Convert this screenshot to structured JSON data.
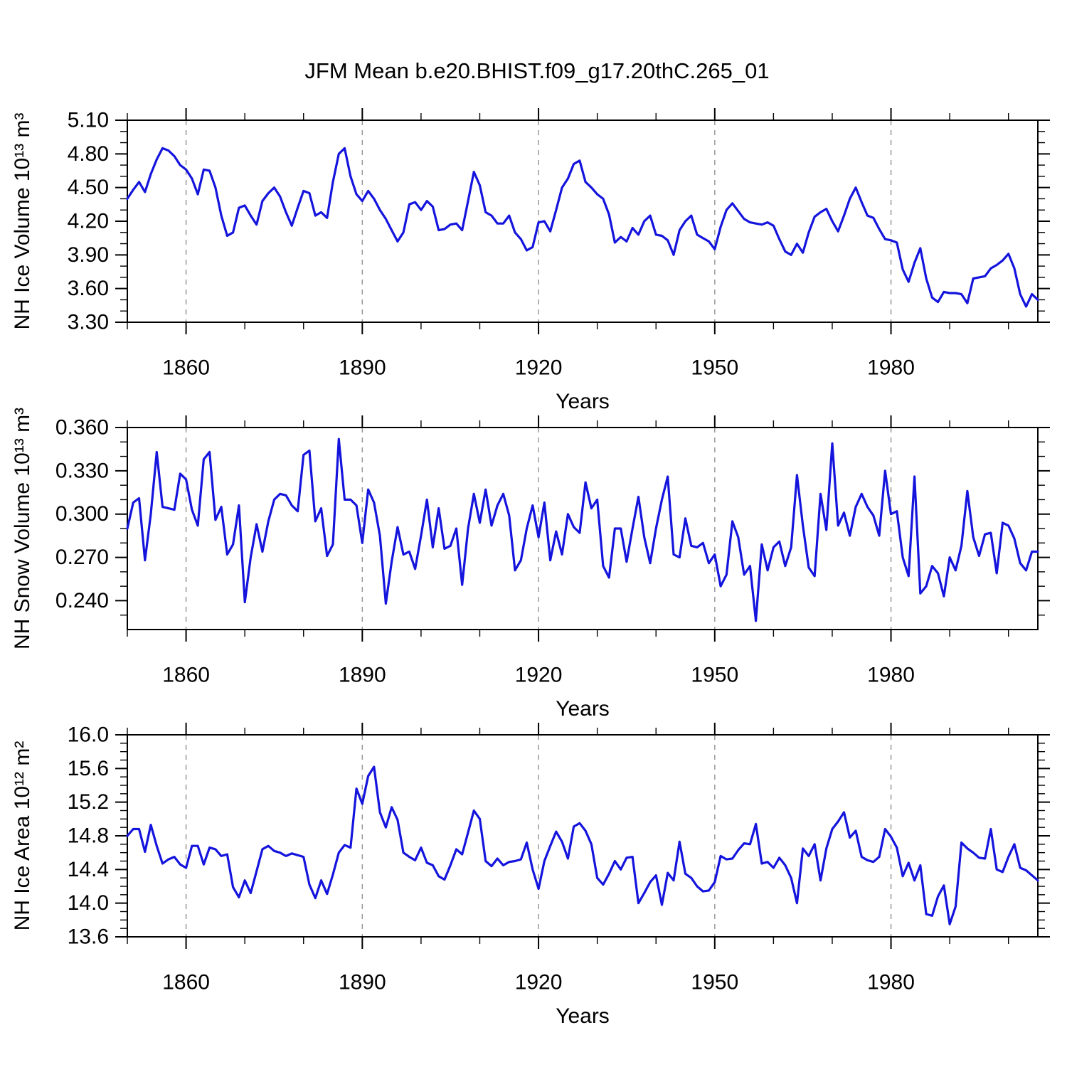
{
  "title": "JFM Mean b.e20.BHIST.f09_g17.20thC.265_01",
  "line_color": "#1414dd",
  "grid_color": "#999999",
  "axis_color": "#000000",
  "chart_data": [
    {
      "type": "line",
      "ylabel": "NH Ice Volume 10¹³ m³",
      "xlabel": "Years",
      "xlim": [
        1850,
        2005
      ],
      "x_start": 1850,
      "x_step": 1,
      "xticks_major": [
        1860,
        1890,
        1920,
        1950,
        1980
      ],
      "xtick_labels": [
        "1860",
        "1890",
        "1920",
        "1950",
        "1980"
      ],
      "xticks_minor": [
        1850,
        1870,
        1880,
        1900,
        1910,
        1930,
        1940,
        1960,
        1970,
        1990,
        2000
      ],
      "ylim": [
        3.3,
        5.1
      ],
      "yticks_major": [
        3.3,
        3.6,
        3.9,
        4.2,
        4.5,
        4.8,
        5.1
      ],
      "ytick_labels": [
        "3.30",
        "3.60",
        "3.90",
        "4.20",
        "4.50",
        "4.80",
        "5.10"
      ],
      "yticks_minor": [
        3.4,
        3.5,
        3.7,
        3.8,
        4.0,
        4.1,
        4.3,
        4.4,
        4.6,
        4.7,
        4.9,
        5.0
      ],
      "grid": true,
      "legend": "none",
      "values": [
        4.4,
        4.48,
        4.55,
        4.46,
        4.62,
        4.75,
        4.85,
        4.83,
        4.78,
        4.7,
        4.66,
        4.58,
        4.44,
        4.66,
        4.65,
        4.5,
        4.25,
        4.07,
        4.1,
        4.32,
        4.34,
        4.25,
        4.17,
        4.38,
        4.45,
        4.5,
        4.42,
        4.28,
        4.16,
        4.32,
        4.47,
        4.45,
        4.25,
        4.28,
        4.23,
        4.55,
        4.8,
        4.85,
        4.6,
        4.44,
        4.38,
        4.47,
        4.4,
        4.3,
        4.22,
        4.12,
        4.02,
        4.1,
        4.35,
        4.37,
        4.3,
        4.38,
        4.33,
        4.12,
        4.13,
        4.17,
        4.18,
        4.12,
        4.38,
        4.64,
        4.52,
        4.28,
        4.25,
        4.18,
        4.18,
        4.25,
        4.1,
        4.04,
        3.94,
        3.97,
        4.19,
        4.2,
        4.11,
        4.3,
        4.5,
        4.58,
        4.71,
        4.74,
        4.55,
        4.5,
        4.44,
        4.4,
        4.26,
        4.01,
        4.06,
        4.02,
        4.14,
        4.08,
        4.2,
        4.25,
        4.08,
        4.07,
        4.03,
        3.9,
        4.12,
        4.2,
        4.25,
        4.08,
        4.05,
        4.02,
        3.95,
        4.15,
        4.3,
        4.36,
        4.29,
        4.22,
        4.19,
        4.18,
        4.17,
        4.19,
        4.16,
        4.04,
        3.93,
        3.9,
        4.0,
        3.92,
        4.1,
        4.24,
        4.28,
        4.31,
        4.2,
        4.11,
        4.25,
        4.4,
        4.5,
        4.37,
        4.25,
        4.23,
        4.13,
        4.04,
        4.03,
        4.01,
        3.77,
        3.66,
        3.83,
        3.96,
        3.69,
        3.52,
        3.48,
        3.57,
        3.56,
        3.56,
        3.55,
        3.47,
        3.69,
        3.7,
        3.71,
        3.78,
        3.81,
        3.85,
        3.91,
        3.78,
        3.55,
        3.44,
        3.55,
        3.5
      ]
    },
    {
      "type": "line",
      "ylabel": "NH Snow Volume 10¹³ m³",
      "xlabel": "Years",
      "xlim": [
        1850,
        2005
      ],
      "x_start": 1850,
      "x_step": 1,
      "xticks_major": [
        1860,
        1890,
        1920,
        1950,
        1980
      ],
      "xtick_labels": [
        "1860",
        "1890",
        "1920",
        "1950",
        "1980"
      ],
      "xticks_minor": [
        1850,
        1870,
        1880,
        1900,
        1910,
        1930,
        1940,
        1960,
        1970,
        1990,
        2000
      ],
      "ylim": [
        0.22,
        0.36
      ],
      "yticks_major": [
        0.24,
        0.27,
        0.3,
        0.33,
        0.36
      ],
      "ytick_labels": [
        "0.240",
        "0.270",
        "0.300",
        "0.330",
        "0.360"
      ],
      "yticks_minor": [
        0.23,
        0.25,
        0.26,
        0.28,
        0.29,
        0.31,
        0.32,
        0.34,
        0.35
      ],
      "grid": true,
      "legend": "none",
      "values": [
        0.29,
        0.308,
        0.311,
        0.268,
        0.3,
        0.343,
        0.305,
        0.304,
        0.303,
        0.328,
        0.324,
        0.303,
        0.292,
        0.338,
        0.343,
        0.296,
        0.305,
        0.272,
        0.279,
        0.306,
        0.239,
        0.27,
        0.293,
        0.274,
        0.295,
        0.31,
        0.314,
        0.313,
        0.306,
        0.302,
        0.341,
        0.344,
        0.295,
        0.304,
        0.271,
        0.279,
        0.352,
        0.31,
        0.31,
        0.306,
        0.28,
        0.317,
        0.308,
        0.285,
        0.238,
        0.267,
        0.291,
        0.272,
        0.274,
        0.262,
        0.285,
        0.31,
        0.277,
        0.304,
        0.276,
        0.278,
        0.29,
        0.251,
        0.29,
        0.314,
        0.294,
        0.317,
        0.292,
        0.306,
        0.314,
        0.299,
        0.261,
        0.268,
        0.29,
        0.306,
        0.284,
        0.308,
        0.268,
        0.288,
        0.272,
        0.3,
        0.291,
        0.287,
        0.322,
        0.304,
        0.31,
        0.264,
        0.256,
        0.29,
        0.29,
        0.267,
        0.29,
        0.312,
        0.284,
        0.266,
        0.29,
        0.31,
        0.326,
        0.272,
        0.27,
        0.297,
        0.278,
        0.277,
        0.28,
        0.266,
        0.272,
        0.25,
        0.258,
        0.295,
        0.284,
        0.258,
        0.264,
        0.226,
        0.279,
        0.261,
        0.277,
        0.281,
        0.264,
        0.277,
        0.327,
        0.292,
        0.263,
        0.257,
        0.314,
        0.289,
        0.349,
        0.292,
        0.301,
        0.285,
        0.305,
        0.314,
        0.305,
        0.299,
        0.285,
        0.33,
        0.3,
        0.302,
        0.27,
        0.257,
        0.326,
        0.245,
        0.25,
        0.264,
        0.259,
        0.243,
        0.27,
        0.261,
        0.278,
        0.316,
        0.284,
        0.271,
        0.286,
        0.287,
        0.259,
        0.294,
        0.292,
        0.283,
        0.266,
        0.261,
        0.274,
        0.274
      ]
    },
    {
      "type": "line",
      "ylabel": "NH Ice Area 10¹² m²",
      "xlabel": "Years",
      "xlim": [
        1850,
        2005
      ],
      "x_start": 1850,
      "x_step": 1,
      "xticks_major": [
        1860,
        1890,
        1920,
        1950,
        1980
      ],
      "xtick_labels": [
        "1860",
        "1890",
        "1920",
        "1950",
        "1980"
      ],
      "xticks_minor": [
        1850,
        1870,
        1880,
        1900,
        1910,
        1930,
        1940,
        1960,
        1970,
        1990,
        2000
      ],
      "ylim": [
        13.6,
        16.0
      ],
      "yticks_major": [
        13.6,
        14.0,
        14.4,
        14.8,
        15.2,
        15.6,
        16.0
      ],
      "ytick_labels": [
        "13.6",
        "14.0",
        "14.4",
        "14.8",
        "15.2",
        "15.6",
        "16.0"
      ],
      "yticks_minor": [
        13.7,
        13.8,
        13.9,
        14.1,
        14.2,
        14.3,
        14.5,
        14.6,
        14.7,
        14.9,
        15.0,
        15.1,
        15.3,
        15.4,
        15.5,
        15.7,
        15.8,
        15.9
      ],
      "grid": true,
      "legend": "none",
      "values": [
        14.8,
        14.88,
        14.88,
        14.61,
        14.93,
        14.68,
        14.47,
        14.52,
        14.55,
        14.46,
        14.42,
        14.68,
        14.68,
        14.46,
        14.66,
        14.64,
        14.56,
        14.58,
        14.19,
        14.07,
        14.27,
        14.12,
        14.38,
        14.64,
        14.68,
        14.62,
        14.6,
        14.56,
        14.59,
        14.57,
        14.55,
        14.22,
        14.06,
        14.27,
        14.11,
        14.34,
        14.6,
        14.69,
        14.66,
        15.36,
        15.18,
        15.51,
        15.62,
        15.08,
        14.9,
        15.14,
        14.99,
        14.6,
        14.55,
        14.51,
        14.66,
        14.48,
        14.45,
        14.32,
        14.28,
        14.45,
        14.64,
        14.58,
        14.84,
        15.1,
        15.0,
        14.5,
        14.44,
        14.53,
        14.45,
        14.49,
        14.5,
        14.52,
        14.72,
        14.4,
        14.17,
        14.5,
        14.68,
        14.85,
        14.73,
        14.53,
        14.91,
        14.95,
        14.86,
        14.7,
        14.3,
        14.22,
        14.35,
        14.5,
        14.4,
        14.54,
        14.55,
        14.0,
        14.12,
        14.25,
        14.33,
        13.98,
        14.36,
        14.27,
        14.73,
        14.35,
        14.3,
        14.2,
        14.14,
        14.15,
        14.25,
        14.56,
        14.52,
        14.53,
        14.63,
        14.71,
        14.7,
        14.94,
        14.47,
        14.49,
        14.42,
        14.54,
        14.45,
        14.3,
        14.0,
        14.65,
        14.56,
        14.7,
        14.27,
        14.65,
        14.88,
        14.97,
        15.08,
        14.78,
        14.86,
        14.55,
        14.51,
        14.49,
        14.55,
        14.88,
        14.79,
        14.66,
        14.32,
        14.48,
        14.27,
        14.45,
        13.87,
        13.85,
        14.08,
        14.21,
        13.75,
        13.96,
        14.72,
        14.65,
        14.6,
        14.54,
        14.53,
        14.88,
        14.4,
        14.37,
        14.55,
        14.7,
        14.42,
        14.39,
        14.33,
        14.27
      ]
    }
  ]
}
